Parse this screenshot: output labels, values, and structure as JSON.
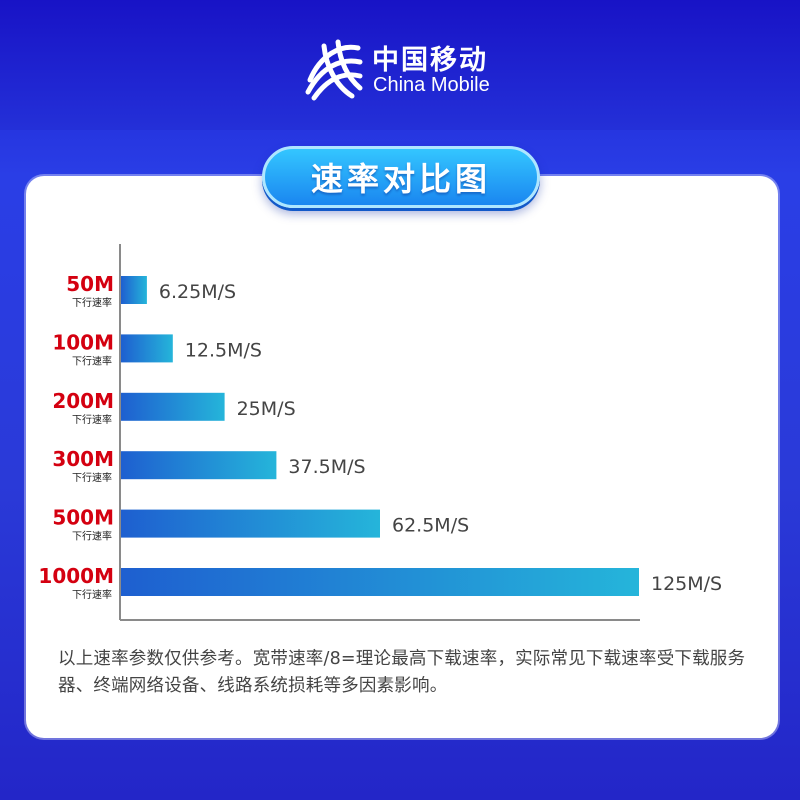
{
  "brand": {
    "name_cn": "中国移动",
    "name_en": "China Mobile",
    "logo_icon": "china-mobile-logo-icon"
  },
  "title": "速率对比图",
  "chart_data": {
    "type": "bar",
    "orientation": "horizontal",
    "title": "速率对比图",
    "categories": [
      {
        "label": "50M",
        "sublabel": "下行速率"
      },
      {
        "label": "100M",
        "sublabel": "下行速率"
      },
      {
        "label": "200M",
        "sublabel": "下行速率"
      },
      {
        "label": "300M",
        "sublabel": "下行速率"
      },
      {
        "label": "500M",
        "sublabel": "下行速率"
      },
      {
        "label": "1000M",
        "sublabel": "下行速率"
      }
    ],
    "values": [
      6.25,
      12.5,
      25,
      37.5,
      62.5,
      125
    ],
    "value_labels": [
      "6.25M/S",
      "12.5M/S",
      "25M/S",
      "37.5M/S",
      "62.5M/S",
      "125M/S"
    ],
    "xlim": [
      0,
      125
    ],
    "grid": false,
    "colors": {
      "category_label": "#d40010",
      "sublabel": "#222222",
      "bar_start": "#1e5fd0",
      "bar_end": "#25b5da",
      "value_label": "#444444",
      "axis": "#8a8a8a"
    }
  },
  "footnote": "以上速率参数仅供参考。宽带速率/8=理论最高下载速率，实际常见下载速率受下载服务器、终端网络设备、线路系统损耗等多因素影响。"
}
